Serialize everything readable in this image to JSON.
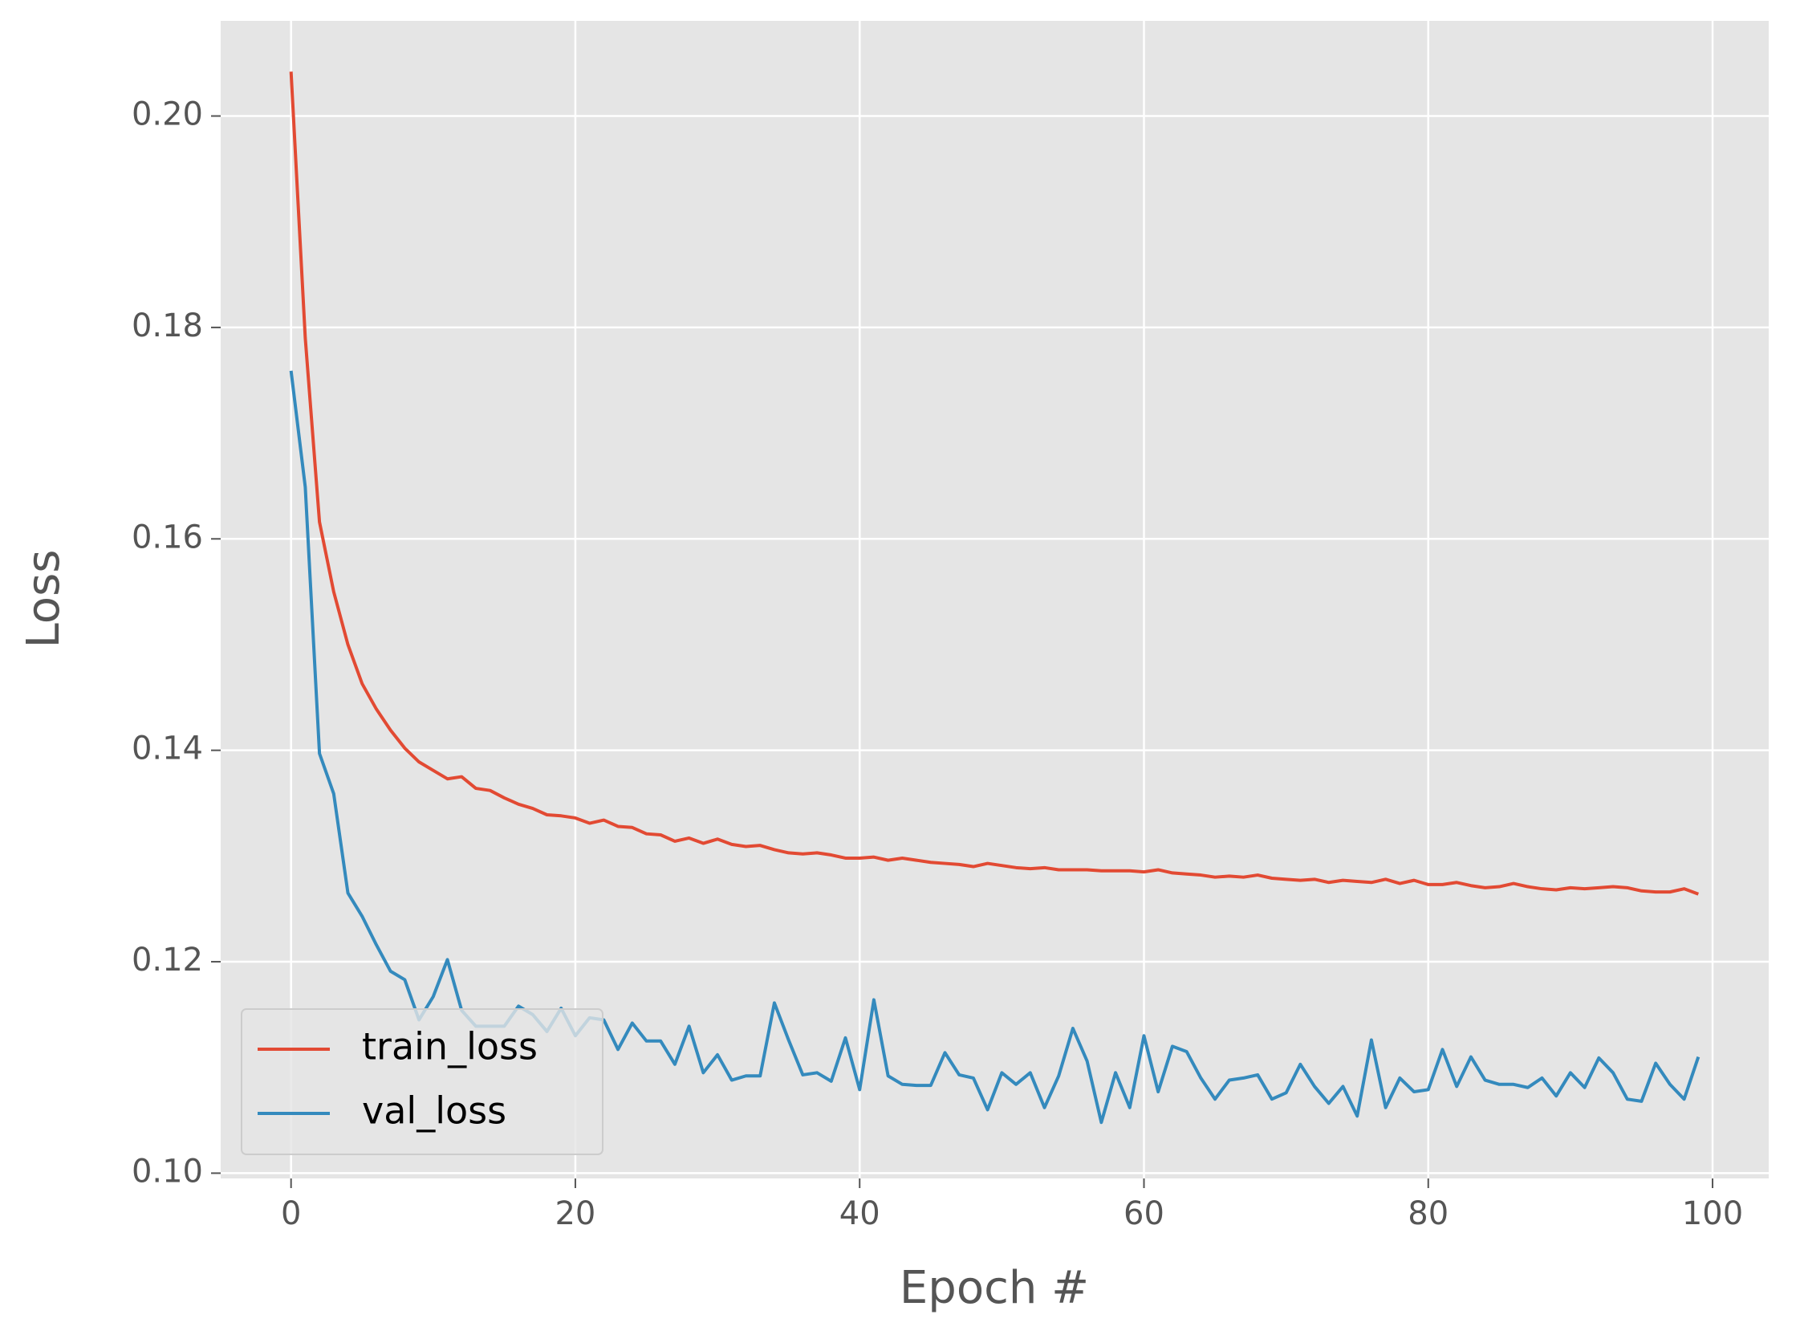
{
  "chart_data": {
    "type": "line",
    "xlabel": "Epoch #",
    "ylabel": "Loss",
    "x": [
      0,
      1,
      2,
      3,
      4,
      5,
      6,
      7,
      8,
      9,
      10,
      11,
      12,
      13,
      14,
      15,
      16,
      17,
      18,
      19,
      20,
      21,
      22,
      23,
      24,
      25,
      26,
      27,
      28,
      29,
      30,
      31,
      32,
      33,
      34,
      35,
      36,
      37,
      38,
      39,
      40,
      41,
      42,
      43,
      44,
      45,
      46,
      47,
      48,
      49,
      50,
      51,
      52,
      53,
      54,
      55,
      56,
      57,
      58,
      59,
      60,
      61,
      62,
      63,
      64,
      65,
      66,
      67,
      68,
      69,
      70,
      71,
      72,
      73,
      74,
      75,
      76,
      77,
      78,
      79,
      80,
      81,
      82,
      83,
      84,
      85,
      86,
      87,
      88,
      89,
      90,
      91,
      92,
      93,
      94,
      95,
      96,
      97,
      98,
      99
    ],
    "series": [
      {
        "name": "train_loss",
        "color": "#E24A33",
        "values": [
          0.2042,
          0.179,
          0.1616,
          0.155,
          0.15,
          0.1463,
          0.1439,
          0.1419,
          0.1402,
          0.1389,
          0.1381,
          0.1373,
          0.1375,
          0.1364,
          0.1362,
          0.1355,
          0.1349,
          0.1345,
          0.1339,
          0.1338,
          0.1336,
          0.1331,
          0.1334,
          0.1328,
          0.1327,
          0.1321,
          0.132,
          0.1314,
          0.1317,
          0.1312,
          0.1316,
          0.1311,
          0.1309,
          0.131,
          0.1306,
          0.1303,
          0.1302,
          0.1303,
          0.1301,
          0.1298,
          0.1298,
          0.1299,
          0.1296,
          0.1298,
          0.1296,
          0.1294,
          0.1293,
          0.1292,
          0.129,
          0.1293,
          0.1291,
          0.1289,
          0.1288,
          0.1289,
          0.1287,
          0.1287,
          0.1287,
          0.1286,
          0.1286,
          0.1286,
          0.1285,
          0.1287,
          0.1284,
          0.1283,
          0.1282,
          0.128,
          0.1281,
          0.128,
          0.1282,
          0.1279,
          0.1278,
          0.1277,
          0.1278,
          0.1275,
          0.1277,
          0.1276,
          0.1275,
          0.1278,
          0.1274,
          0.1277,
          0.1273,
          0.1273,
          0.1275,
          0.1272,
          0.127,
          0.1271,
          0.1274,
          0.1271,
          0.1269,
          0.1268,
          0.127,
          0.1269,
          0.127,
          0.1271,
          0.127,
          0.1267,
          0.1266,
          0.1266,
          0.1269,
          0.1264
        ]
      },
      {
        "name": "val_loss",
        "color": "#348ABD",
        "values": [
          0.1759,
          0.1649,
          0.1397,
          0.1359,
          0.1265,
          0.1243,
          0.1216,
          0.1191,
          0.1183,
          0.1145,
          0.1167,
          0.1202,
          0.1154,
          0.1139,
          0.1139,
          0.1139,
          0.1158,
          0.115,
          0.1134,
          0.1156,
          0.113,
          0.1147,
          0.1145,
          0.1117,
          0.1142,
          0.1125,
          0.1125,
          0.1103,
          0.1139,
          0.1095,
          0.1112,
          0.1088,
          0.1092,
          0.1092,
          0.1161,
          0.1126,
          0.1093,
          0.1095,
          0.1087,
          0.1128,
          0.1079,
          0.1164,
          0.1092,
          0.1084,
          0.1083,
          0.1083,
          0.1114,
          0.1093,
          0.109,
          0.106,
          0.1095,
          0.1084,
          0.1095,
          0.1062,
          0.1092,
          0.1137,
          0.1106,
          0.1048,
          0.1095,
          0.1062,
          0.113,
          0.1077,
          0.112,
          0.1115,
          0.109,
          0.107,
          0.1088,
          0.109,
          0.1093,
          0.107,
          0.1076,
          0.1103,
          0.1082,
          0.1066,
          0.1082,
          0.1054,
          0.1126,
          0.1062,
          0.109,
          0.1077,
          0.1079,
          0.1117,
          0.1082,
          0.111,
          0.1088,
          0.1084,
          0.1084,
          0.1081,
          0.109,
          0.1073,
          0.1095,
          0.1081,
          0.1109,
          0.1095,
          0.107,
          0.1068,
          0.1104,
          0.1084,
          0.107,
          0.111
        ]
      }
    ],
    "xlim": [
      -4.95,
      103.95
    ],
    "ylim": [
      0.0995,
      0.209
    ],
    "xticks": [
      0,
      20,
      40,
      60,
      80,
      100
    ],
    "yticks": [
      {
        "value": 0.1,
        "label": "0.10"
      },
      0.12,
      0.14,
      0.16,
      0.18,
      {
        "value": 0.2,
        "label": "0.20"
      }
    ],
    "grid": true,
    "legend": "lower left",
    "background": "#E5E5E5"
  }
}
